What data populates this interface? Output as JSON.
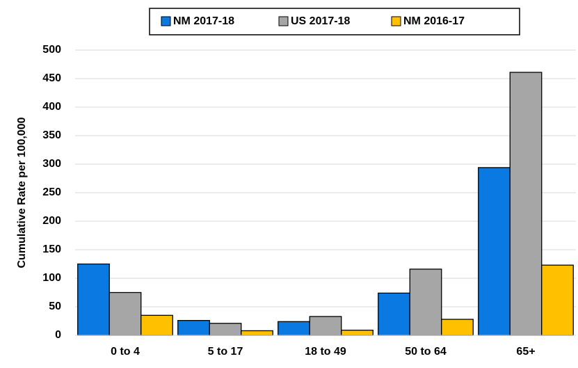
{
  "chart_data": {
    "type": "bar",
    "y_label": "Cumulative Rate per 100,000",
    "categories": [
      "0 to 4",
      "5 to 17",
      "18 to 49",
      "50 to 64",
      "65+"
    ],
    "series": [
      {
        "name": "NM 2017-18",
        "color": "#0a7ae2",
        "values": [
          125,
          26,
          24,
          74,
          294
        ]
      },
      {
        "name": "US 2017-18",
        "color": "#a6a6a6",
        "values": [
          75,
          21,
          33,
          116,
          461
        ]
      },
      {
        "name": "NM 2016-17",
        "color": "#ffc000",
        "values": [
          35,
          8,
          9,
          28,
          123
        ]
      }
    ],
    "ylim": [
      0,
      500
    ],
    "yticks": [
      0,
      50,
      100,
      150,
      200,
      250,
      300,
      350,
      400,
      450,
      500
    ],
    "grid": true,
    "legend": "top"
  }
}
